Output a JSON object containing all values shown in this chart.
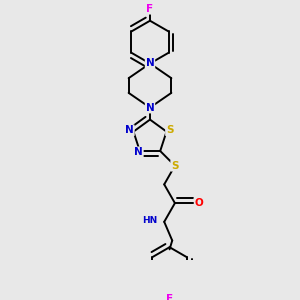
{
  "background_color": "#e8e8e8",
  "figsize": [
    3.0,
    3.0
  ],
  "dpi": 100,
  "atom_colors": {
    "C": "#000000",
    "N": "#0000cc",
    "S": "#ccaa00",
    "O": "#ff0000",
    "F": "#ee00ee",
    "H": "#555555"
  },
  "bond_color": "#000000",
  "bond_width": 1.4,
  "font_size": 7.5
}
